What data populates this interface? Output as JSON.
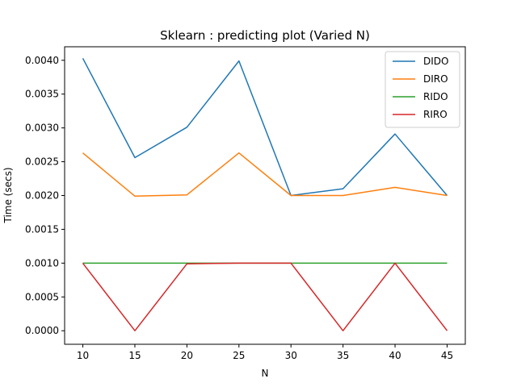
{
  "chart_data": {
    "type": "line",
    "title": "Sklearn : predicting plot (Varied N)",
    "xlabel": "N",
    "ylabel": "Time (secs)",
    "x": [
      10,
      15,
      20,
      25,
      30,
      35,
      40,
      45
    ],
    "xticks": [
      "10",
      "15",
      "20",
      "25",
      "30",
      "35",
      "40",
      "45"
    ],
    "yticks": [
      "0.0000",
      "0.0005",
      "0.0010",
      "0.0015",
      "0.0020",
      "0.0025",
      "0.0030",
      "0.0035",
      "0.0040"
    ],
    "xlim": [
      8.25,
      46.75
    ],
    "ylim": [
      -0.0002,
      0.0042
    ],
    "grid": false,
    "legend_position": "top-right",
    "series": [
      {
        "name": "DIDO",
        "color": "#1f77b4",
        "values": [
          0.00403,
          0.00256,
          0.00301,
          0.00399,
          0.002,
          0.0021,
          0.00291,
          0.002
        ]
      },
      {
        "name": "DIRO",
        "color": "#ff7f0e",
        "values": [
          0.00263,
          0.00199,
          0.00201,
          0.00263,
          0.002,
          0.002,
          0.00212,
          0.002
        ]
      },
      {
        "name": "RIDO",
        "color": "#2ca02c",
        "values": [
          0.001,
          0.001,
          0.001,
          0.001,
          0.001,
          0.001,
          0.001,
          0.001
        ]
      },
      {
        "name": "RIRO",
        "color": "#d62728",
        "values": [
          0.001,
          0.0,
          0.00099,
          0.001,
          0.001,
          0.0,
          0.001,
          0.0
        ]
      }
    ]
  }
}
